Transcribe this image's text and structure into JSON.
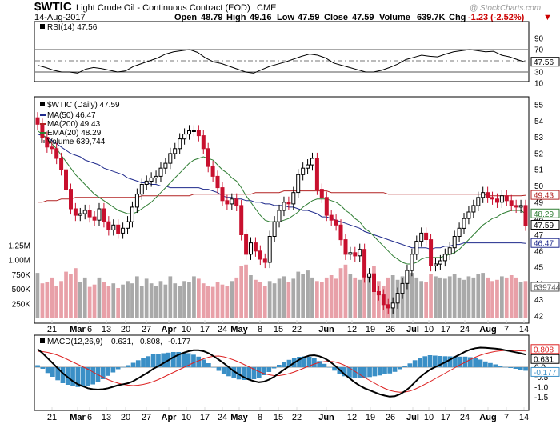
{
  "header": {
    "symbol": "$WTIC",
    "name": "Light Crude Oil - Continuous Contract (EOD)",
    "exchange": "CME",
    "date": "14-Aug-2017",
    "open_label": "Open",
    "open": "48.79",
    "high_label": "High",
    "high": "49.16",
    "low_label": "Low",
    "low": "47.59",
    "close_label": "Close",
    "close": "47.59",
    "volume_label": "Volume",
    "volume": "639.7K",
    "chg_label": "Chg",
    "chg": "-1.23 (-2.52%)",
    "chg_arrow": "▼",
    "brand": "@ StockCharts.com"
  },
  "colors": {
    "up": "#000000",
    "down": "#c8102e",
    "ma50": "#1f2a8c",
    "ma200": "#b22222",
    "ema20": "#2e7d32",
    "vol_up": "#a9a9a9",
    "vol_down": "#e8a0a8",
    "macd_hist": "#3a8fc6",
    "macd_line": "#000000",
    "signal_line": "#dd2222"
  },
  "x_axis": {
    "ticks": [
      {
        "label": "21",
        "bold": false
      },
      {
        "label": "Mar",
        "bold": true
      },
      {
        "label": "6",
        "bold": false
      },
      {
        "label": "13",
        "bold": false
      },
      {
        "label": "20",
        "bold": false
      },
      {
        "label": "27",
        "bold": false
      },
      {
        "label": "Apr",
        "bold": true
      },
      {
        "label": "10",
        "bold": false
      },
      {
        "label": "17",
        "bold": false
      },
      {
        "label": "24",
        "bold": false
      },
      {
        "label": "May",
        "bold": true
      },
      {
        "label": "8",
        "bold": false
      },
      {
        "label": "15",
        "bold": false
      },
      {
        "label": "22",
        "bold": false
      },
      {
        "label": "Jun",
        "bold": true
      },
      {
        "label": "12",
        "bold": false
      },
      {
        "label": "19",
        "bold": false
      },
      {
        "label": "26",
        "bold": false
      },
      {
        "label": "Jul",
        "bold": true
      },
      {
        "label": "10",
        "bold": false
      },
      {
        "label": "17",
        "bold": false
      },
      {
        "label": "24",
        "bold": false
      },
      {
        "label": "Aug",
        "bold": true
      },
      {
        "label": "7",
        "bold": false
      },
      {
        "label": "14",
        "bold": false
      }
    ]
  },
  "rsi": {
    "legend": "RSI(14) 47.56",
    "last": "47.56",
    "ticks": [
      "90",
      "70",
      "50",
      "30",
      "10"
    ],
    "levels": [
      70,
      30
    ],
    "values": [
      42,
      38,
      33,
      30,
      30,
      28,
      35,
      38,
      36,
      33,
      30,
      32,
      40,
      45,
      50,
      55,
      62,
      66,
      68,
      70,
      65,
      55,
      48,
      45,
      40,
      35,
      30,
      28,
      34,
      40,
      44,
      48,
      53,
      58,
      62,
      60,
      55,
      46,
      42,
      38,
      34,
      30,
      30,
      33,
      38,
      44,
      52,
      56,
      60,
      58,
      57,
      62,
      66,
      68,
      70,
      68,
      66,
      67,
      60,
      57,
      52,
      47.56
    ]
  },
  "price": {
    "legend_title": "$WTIC (Daily) 47.59",
    "legend_ma50": "MA(50) 46.47",
    "legend_ma200": "MA(200) 49.43",
    "legend_ema20": "EMA(20) 48.29",
    "legend_volume": "Volume 639,744",
    "ticks": [
      "55",
      "54",
      "53",
      "52",
      "51",
      "50",
      "49",
      "48",
      "47",
      "46",
      "45",
      "44",
      "43",
      "42"
    ],
    "tags": {
      "ma200": "49.43",
      "ema20": "48.29",
      "close": "47.59",
      "ma50": "46.47"
    },
    "vol_ticks": [
      "1.25M",
      "1.00M",
      "750K",
      "500K",
      "250K"
    ],
    "vol_tag": "639744",
    "closes": [
      53.8,
      53.0,
      52.4,
      52.3,
      51.7,
      51.0,
      49.8,
      48.6,
      48.2,
      48.3,
      48.5,
      48.1,
      47.9,
      48.6,
      47.8,
      47.3,
      47.6,
      47.1,
      47.4,
      47.8,
      48.7,
      49.5,
      50.1,
      50.3,
      50.5,
      50.6,
      51.1,
      51.4,
      52.0,
      52.3,
      52.9,
      53.2,
      53.4,
      53.4,
      53.1,
      52.3,
      51.2,
      50.6,
      49.9,
      49.1,
      48.9,
      49.2,
      48.8,
      47.0,
      45.8,
      46.5,
      46.0,
      45.5,
      45.3,
      46.9,
      47.8,
      48.5,
      49.0,
      48.9,
      49.6,
      50.7,
      51.1,
      51.3,
      51.7,
      49.8,
      49.3,
      48.2,
      47.9,
      47.6,
      46.7,
      45.8,
      45.9,
      45.7,
      46.1,
      44.4,
      44.6,
      43.5,
      43.3,
      42.7,
      42.5,
      42.8,
      43.4,
      44.0,
      44.8,
      45.8,
      46.6,
      47.1,
      46.7,
      45.1,
      45.2,
      45.4,
      45.8,
      46.2,
      46.9,
      47.4,
      48.0,
      48.4,
      48.8,
      49.3,
      49.6,
      49.3,
      49.2,
      49.0,
      49.4,
      49.1,
      48.8,
      48.7,
      48.8,
      47.59
    ],
    "ma50": [
      53.2,
      53.1,
      53.0,
      52.8,
      52.6,
      52.4,
      52.2,
      52.0,
      51.9,
      51.8,
      51.6,
      51.5,
      51.4,
      51.3,
      51.1,
      51.0,
      50.9,
      50.8,
      50.7,
      50.5,
      50.4,
      50.3,
      50.2,
      50.2,
      50.1,
      50.1,
      50.0,
      50.0,
      49.9,
      49.9,
      49.9,
      49.9,
      49.9,
      49.9,
      49.9,
      49.8,
      49.8,
      49.7,
      49.6,
      49.4,
      49.3,
      49.3,
      49.2,
      49.2,
      49.1,
      49.1,
      49.0,
      49.0,
      48.9,
      48.9,
      48.8,
      48.8,
      48.8,
      48.7,
      48.7,
      48.6,
      48.5,
      48.5,
      48.4,
      48.3,
      48.1,
      48.1,
      48.0,
      47.9,
      47.8,
      47.7,
      47.6,
      47.5,
      47.4,
      47.2,
      47.1,
      47.0,
      46.9,
      46.8,
      46.7,
      46.6,
      46.5,
      46.4,
      46.3,
      46.2,
      46.2,
      46.2,
      46.2,
      46.1,
      46.2,
      46.2,
      46.3,
      46.3,
      46.4,
      46.4,
      46.5,
      46.5,
      46.5,
      46.5,
      46.5,
      46.5,
      46.5,
      46.5,
      46.5,
      46.5,
      46.5,
      46.5,
      46.5,
      46.47
    ],
    "ma200": [
      49.0,
      49.0,
      49.1,
      49.1,
      49.1,
      49.2,
      49.2,
      49.2,
      49.3,
      49.3,
      49.3,
      49.3,
      49.3,
      49.3,
      49.3,
      49.3,
      49.3,
      49.3,
      49.3,
      49.3,
      49.3,
      49.3,
      49.4,
      49.4,
      49.4,
      49.4,
      49.4,
      49.4,
      49.4,
      49.4,
      49.4,
      49.4,
      49.4,
      49.5,
      49.5,
      49.5,
      49.5,
      49.5,
      49.5,
      49.5,
      49.5,
      49.5,
      49.5,
      49.5,
      49.5,
      49.5,
      49.6,
      49.6,
      49.6,
      49.6,
      49.6,
      49.6,
      49.7,
      49.7,
      49.7,
      49.7,
      49.7,
      49.7,
      49.7,
      49.7,
      49.7,
      49.7,
      49.6,
      49.6,
      49.6,
      49.6,
      49.6,
      49.6,
      49.6,
      49.6,
      49.6,
      49.6,
      49.6,
      49.6,
      49.5,
      49.5,
      49.5,
      49.5,
      49.5,
      49.5,
      49.5,
      49.5,
      49.5,
      49.5,
      49.5,
      49.5,
      49.5,
      49.5,
      49.5,
      49.5,
      49.5,
      49.5,
      49.5,
      49.5,
      49.5,
      49.4,
      49.4,
      49.4,
      49.4,
      49.4,
      49.4,
      49.4,
      49.4,
      49.43
    ],
    "ema20": [
      53.4,
      53.2,
      52.9,
      52.6,
      52.3,
      51.9,
      51.5,
      51.1,
      50.7,
      50.4,
      50.1,
      49.8,
      49.5,
      49.3,
      49.1,
      48.9,
      48.7,
      48.5,
      48.4,
      48.3,
      48.3,
      48.4,
      48.6,
      48.8,
      49.0,
      49.3,
      49.6,
      49.9,
      50.2,
      50.5,
      50.8,
      51.1,
      51.4,
      51.6,
      51.7,
      51.8,
      51.7,
      51.6,
      51.3,
      51.0,
      50.8,
      50.5,
      50.3,
      49.9,
      49.4,
      49.0,
      48.6,
      48.2,
      47.9,
      47.8,
      47.8,
      47.8,
      47.9,
      48.0,
      48.2,
      48.4,
      48.7,
      48.9,
      49.1,
      49.2,
      49.2,
      49.2,
      49.1,
      49.0,
      48.8,
      48.5,
      48.3,
      48.0,
      47.8,
      47.4,
      47.2,
      46.9,
      46.6,
      46.3,
      46.0,
      45.7,
      45.5,
      45.3,
      45.2,
      45.2,
      45.3,
      45.5,
      45.6,
      45.6,
      45.6,
      45.6,
      45.7,
      45.8,
      45.9,
      46.1,
      46.4,
      46.7,
      47.0,
      47.3,
      47.6,
      47.8,
      48.0,
      48.1,
      48.3,
      48.4,
      48.5,
      48.5,
      48.5,
      48.29
    ],
    "volume": [
      780,
      600,
      620,
      700,
      560,
      640,
      800,
      760,
      860,
      620,
      700,
      540,
      580,
      700,
      620,
      560,
      600,
      520,
      580,
      640,
      600,
      720,
      560,
      680,
      600,
      560,
      640,
      580,
      720,
      600,
      560,
      640,
      620,
      720,
      680,
      600,
      560,
      540,
      620,
      580,
      560,
      640,
      700,
      900,
      920,
      740,
      660,
      620,
      560,
      640,
      600,
      680,
      720,
      620,
      680,
      800,
      760,
      820,
      700,
      640,
      620,
      700,
      740,
      680,
      860,
      920,
      760,
      700,
      660,
      800,
      720,
      900,
      640,
      560,
      700,
      740,
      660,
      720,
      740,
      780,
      700,
      640,
      620,
      760,
      720,
      700,
      680,
      720,
      760,
      700,
      660,
      720,
      700,
      760,
      780,
      700,
      640,
      660,
      720,
      700,
      740,
      700,
      620,
      639.744
    ]
  },
  "macd": {
    "legend_prefix": "MACD(12,26,9)",
    "legend_macd": "0.631,",
    "legend_signal": "0.808,",
    "legend_hist": "-0.177",
    "ticks": [
      "1.0",
      "0.5",
      "0.0",
      "-0.5",
      "-1.0",
      "-1.5"
    ],
    "tags": {
      "signal": "0.808",
      "macd": "0.631",
      "hist": "-0.177"
    },
    "macd_values": [
      0.9,
      0.7,
      0.45,
      0.2,
      -0.05,
      -0.3,
      -0.5,
      -0.7,
      -0.85,
      -0.95,
      -1.05,
      -1.1,
      -1.12,
      -1.1,
      -1.05,
      -0.98,
      -0.9,
      -0.85,
      -0.8,
      -0.7,
      -0.55,
      -0.4,
      -0.25,
      -0.08,
      0.05,
      0.2,
      0.35,
      0.5,
      0.62,
      0.72,
      0.8,
      0.85,
      0.85,
      0.8,
      0.7,
      0.55,
      0.38,
      0.2,
      0.0,
      -0.2,
      -0.35,
      -0.5,
      -0.62,
      -0.7,
      -0.75,
      -0.72,
      -0.62,
      -0.48,
      -0.3,
      -0.12,
      0.05,
      0.22,
      0.38,
      0.5,
      0.58,
      0.6,
      0.55,
      0.45,
      0.3,
      0.1,
      -0.12,
      -0.35,
      -0.55,
      -0.75,
      -0.92,
      -1.05,
      -1.15,
      -1.25,
      -1.35,
      -1.42,
      -1.47,
      -1.45,
      -1.35,
      -1.2,
      -1.0,
      -0.75,
      -0.5,
      -0.3,
      -0.12,
      0.0,
      0.12,
      0.25,
      0.38,
      0.52,
      0.65,
      0.78,
      0.88,
      0.95,
      0.98,
      0.97,
      0.95,
      0.93,
      0.9,
      0.85,
      0.8,
      0.75,
      0.7,
      0.631
    ],
    "signal_values": [
      0.8,
      0.78,
      0.74,
      0.68,
      0.6,
      0.5,
      0.38,
      0.26,
      0.14,
      0.02,
      -0.1,
      -0.24,
      -0.38,
      -0.5,
      -0.62,
      -0.72,
      -0.8,
      -0.86,
      -0.9,
      -0.92,
      -0.9,
      -0.86,
      -0.8,
      -0.72,
      -0.62,
      -0.5,
      -0.38,
      -0.26,
      -0.14,
      -0.02,
      0.1,
      0.22,
      0.32,
      0.42,
      0.5,
      0.55,
      0.56,
      0.52,
      0.45,
      0.36,
      0.26,
      0.14,
      0.02,
      -0.1,
      -0.22,
      -0.32,
      -0.38,
      -0.42,
      -0.42,
      -0.38,
      -0.32,
      -0.24,
      -0.14,
      -0.04,
      0.06,
      0.16,
      0.24,
      0.28,
      0.3,
      0.27,
      0.2,
      0.1,
      -0.04,
      -0.2,
      -0.36,
      -0.52,
      -0.66,
      -0.8,
      -0.94,
      -1.06,
      -1.16,
      -1.22,
      -1.25,
      -1.24,
      -1.19,
      -1.1,
      -0.98,
      -0.85,
      -0.72,
      -0.58,
      -0.44,
      -0.3,
      -0.16,
      -0.02,
      0.12,
      0.25,
      0.38,
      0.5,
      0.6,
      0.68,
      0.74,
      0.79,
      0.82,
      0.84,
      0.84,
      0.83,
      0.82,
      0.808
    ]
  }
}
